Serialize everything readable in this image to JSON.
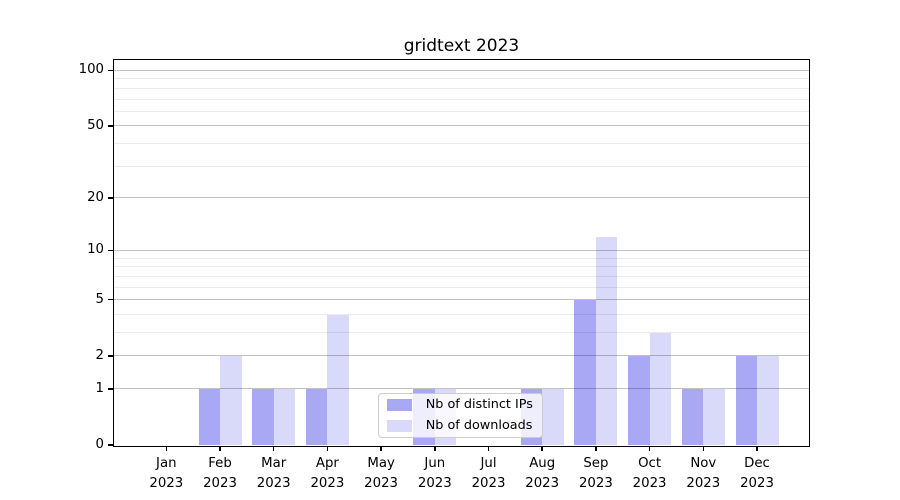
{
  "chart_data": {
    "type": "bar",
    "title": "gridtext 2023",
    "categories": [
      "Jan 2023",
      "Feb 2023",
      "Mar 2023",
      "Apr 2023",
      "May 2023",
      "Jun 2023",
      "Jul 2023",
      "Aug 2023",
      "Sep 2023",
      "Oct 2023",
      "Nov 2023",
      "Dec 2023"
    ],
    "months": [
      "Jan",
      "Feb",
      "Mar",
      "Apr",
      "May",
      "Jun",
      "Jul",
      "Aug",
      "Sep",
      "Oct",
      "Nov",
      "Dec"
    ],
    "year_label": "2023",
    "series": [
      {
        "name": "Nb of distinct IPs",
        "color": "#a8a8f5",
        "values": [
          0,
          1,
          1,
          1,
          0,
          1,
          0,
          1,
          5,
          2,
          1,
          2
        ]
      },
      {
        "name": "Nb of downloads",
        "color": "#d9d9f9",
        "values": [
          0,
          2,
          1,
          4,
          0,
          1,
          0,
          1,
          12,
          3,
          1,
          2
        ]
      }
    ],
    "xlabel": "",
    "ylabel": "",
    "y_axis": {
      "scale": "log1p",
      "tick_values": [
        0,
        1,
        2,
        5,
        10,
        20,
        50,
        100
      ],
      "tick_labels": [
        "0",
        "1",
        "2",
        "5",
        "10",
        "20",
        "50",
        "100"
      ],
      "minor_gridline_values": [
        3,
        4,
        6,
        7,
        8,
        9,
        30,
        40,
        60,
        70,
        80,
        90
      ],
      "ylim": [
        0,
        116
      ]
    },
    "grid": true,
    "legend": {
      "location": "lower center inside plot"
    }
  },
  "colors": {
    "axis": "#000000",
    "major_grid": "rgba(0,0,0,0.24)",
    "minor_grid": "rgba(0,0,0,0.08)",
    "legend_border": "#cccccc",
    "legend_background": "rgba(255,255,255,0.8)",
    "page_background": "#ffffff"
  }
}
